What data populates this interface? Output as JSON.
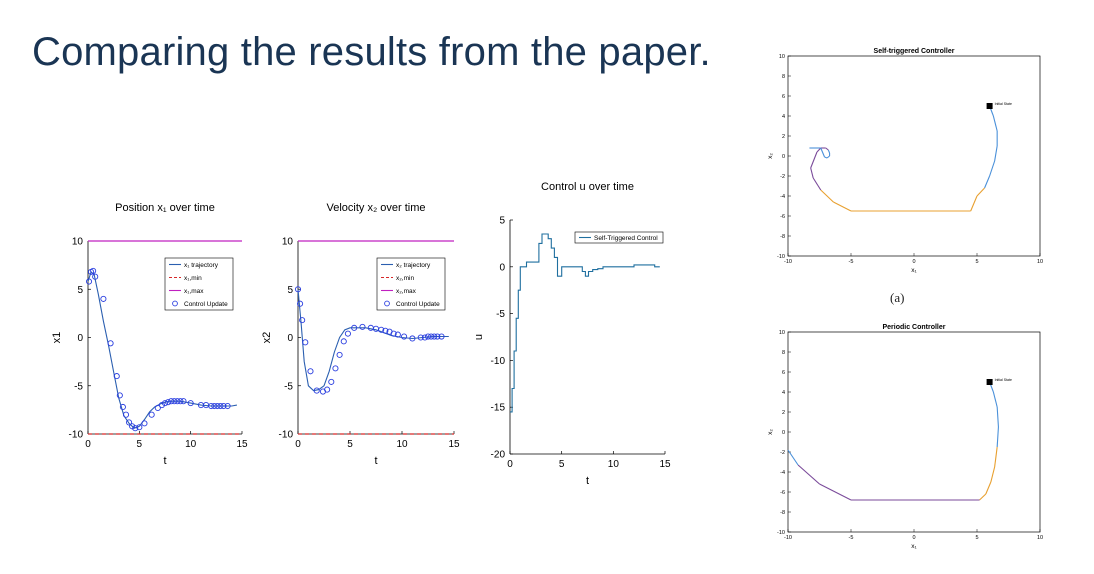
{
  "slide": {
    "title": "Comparing the results from the paper.",
    "subfigure_label": "(a)"
  },
  "colors": {
    "title": "#1a3554",
    "trajectory": "#2b5fb0",
    "markers": "#2b3fe0",
    "xmin": "#d62728",
    "xmax": "#c020c0",
    "control": "#1f6f9f",
    "phase_blue": "#4a90d9",
    "phase_orange": "#e8a030",
    "phase_purple": "#7a4a9a"
  },
  "chart_data": [
    {
      "id": "position",
      "type": "line",
      "title": "Position x₁ over time",
      "xlabel": "t",
      "ylabel": "x1",
      "xlim": [
        0,
        15
      ],
      "ylim": [
        -10,
        10
      ],
      "xticks": [
        0,
        5,
        10,
        15
      ],
      "yticks": [
        10,
        5,
        0,
        -5,
        -10
      ],
      "legend": [
        "x₁ trajectory",
        "x₁,min",
        "x₁,max",
        "Control Update"
      ],
      "legend_position": "top-right",
      "limits": {
        "min": -10,
        "max": 10
      },
      "series": [
        {
          "name": "x₁ trajectory",
          "x": [
            0,
            0.3,
            0.6,
            1,
            1.5,
            2,
            2.5,
            3,
            3.5,
            4,
            4.5,
            5,
            5.5,
            6,
            6.5,
            7,
            7.5,
            8,
            8.5,
            9,
            10,
            11,
            12,
            13,
            14,
            14.5
          ],
          "y": [
            5.8,
            6.8,
            6.5,
            4.5,
            1.7,
            -0.8,
            -3.6,
            -6.3,
            -8.1,
            -8.9,
            -9.4,
            -9.2,
            -8.5,
            -7.7,
            -7.2,
            -6.9,
            -6.7,
            -6.6,
            -6.6,
            -6.6,
            -6.8,
            -7.0,
            -7.1,
            -7.1,
            -7.1,
            -7.0
          ]
        },
        {
          "name": "Control Update",
          "x": [
            0.1,
            0.3,
            0.5,
            0.7,
            1.5,
            2.2,
            2.8,
            3.1,
            3.4,
            3.7,
            4,
            4.3,
            4.6,
            5,
            5.5,
            6.2,
            6.8,
            7.2,
            7.5,
            7.8,
            8.1,
            8.4,
            8.7,
            9,
            9.3,
            10,
            11,
            11.5,
            12,
            12.3,
            12.6,
            12.9,
            13.2,
            13.6
          ],
          "y": [
            5.8,
            6.8,
            6.9,
            6.3,
            4.0,
            -0.6,
            -4.0,
            -6.0,
            -7.2,
            -8.0,
            -8.8,
            -9.2,
            -9.4,
            -9.3,
            -8.9,
            -8.0,
            -7.3,
            -7.0,
            -6.8,
            -6.7,
            -6.6,
            -6.6,
            -6.6,
            -6.6,
            -6.6,
            -6.8,
            -7.0,
            -7.0,
            -7.1,
            -7.1,
            -7.1,
            -7.1,
            -7.1,
            -7.1
          ]
        }
      ]
    },
    {
      "id": "velocity",
      "type": "line",
      "title": "Velocity x₂ over time",
      "xlabel": "t",
      "ylabel": "x2",
      "xlim": [
        0,
        15
      ],
      "ylim": [
        -10,
        10
      ],
      "xticks": [
        0,
        5,
        10,
        15
      ],
      "yticks": [
        10,
        5,
        0,
        -5,
        -10
      ],
      "legend": [
        "x₂ trajectory",
        "x₂,min",
        "x₂,max",
        "Control Update"
      ],
      "legend_position": "top-right",
      "limits": {
        "min": -10,
        "max": 10
      },
      "series": [
        {
          "name": "x₂ trajectory",
          "x": [
            0,
            0.3,
            0.6,
            1,
            1.5,
            2,
            2.5,
            3,
            3.5,
            4,
            4.5,
            5,
            5.5,
            6,
            6.5,
            7,
            7.5,
            8,
            9,
            10,
            11,
            12,
            13,
            14,
            14.5
          ],
          "y": [
            5,
            1.5,
            -2.5,
            -5.0,
            -5.5,
            -5.4,
            -5.0,
            -3.5,
            -1.5,
            0.0,
            0.8,
            1.0,
            1.0,
            1.0,
            1.0,
            0.9,
            0.8,
            0.6,
            0.2,
            0.0,
            -0.1,
            0.0,
            0.1,
            0.1,
            0.1
          ]
        },
        {
          "name": "Control Update",
          "x": [
            0,
            0.2,
            0.4,
            0.7,
            1.2,
            1.8,
            2.4,
            2.8,
            3.2,
            3.6,
            4,
            4.4,
            4.8,
            5.4,
            6.2,
            7,
            7.5,
            8,
            8.4,
            8.8,
            9.2,
            9.6,
            10.2,
            11,
            11.8,
            12.2,
            12.5,
            12.8,
            13.1,
            13.4,
            13.8
          ],
          "y": [
            5,
            3.5,
            1.8,
            -0.5,
            -3.5,
            -5.5,
            -5.6,
            -5.4,
            -4.6,
            -3.2,
            -1.8,
            -0.4,
            0.4,
            1.0,
            1.1,
            1.0,
            0.9,
            0.8,
            0.7,
            0.6,
            0.4,
            0.3,
            0.1,
            -0.1,
            0.0,
            0.0,
            0.1,
            0.1,
            0.1,
            0.1,
            0.1
          ]
        }
      ]
    },
    {
      "id": "control",
      "type": "line",
      "title": "Control u over time",
      "xlabel": "t",
      "ylabel": "u",
      "xlim": [
        0,
        15
      ],
      "ylim": [
        -20,
        5
      ],
      "xticks": [
        0,
        5,
        10,
        15
      ],
      "yticks": [
        5,
        0,
        -5,
        -10,
        -15,
        -20
      ],
      "legend": [
        "Self-Triggered Control"
      ],
      "legend_position": "top-right",
      "series": [
        {
          "name": "Self-Triggered Control",
          "step": true,
          "x": [
            0,
            0.2,
            0.4,
            0.6,
            0.8,
            1.0,
            1.3,
            1.6,
            1.9,
            2.2,
            2.5,
            2.8,
            3.1,
            3.4,
            3.7,
            4.0,
            4.3,
            4.6,
            5.0,
            5.5,
            6.0,
            6.5,
            7.0,
            7.3,
            7.6,
            8.0,
            8.5,
            9.0,
            10.0,
            11.0,
            12.0,
            13.0,
            14.0,
            14.5
          ],
          "y": [
            -15.5,
            -13,
            -9,
            -5.5,
            -2.5,
            0,
            0,
            0.5,
            0.5,
            0.5,
            0.5,
            2.5,
            3.5,
            3.5,
            3.0,
            2.0,
            1.0,
            -1.0,
            0,
            0,
            0,
            0,
            -0.5,
            -1.0,
            -0.5,
            -0.3,
            -0.2,
            0,
            0,
            0,
            0.2,
            0.2,
            0,
            0
          ]
        }
      ]
    },
    {
      "id": "self-triggered-phase",
      "type": "line",
      "title": "Self-triggered Controller",
      "xlabel": "x₁",
      "ylabel": "x₂",
      "xlim": [
        -10,
        10
      ],
      "ylim": [
        -10,
        10
      ],
      "xticks": [
        -10,
        -5,
        0,
        5,
        10
      ],
      "yticks": [
        10,
        8,
        6,
        4,
        2,
        0,
        -2,
        -4,
        -6,
        -8,
        -10
      ],
      "annotation": "Initial State",
      "start": [
        6,
        5
      ],
      "series": [
        {
          "name": "",
          "x": [
            6,
            6.3,
            6.6,
            6.6,
            6.4,
            6.0,
            5.6,
            5.0,
            4.5,
            0,
            -5,
            -6.4,
            -7.4,
            -8.0,
            -8.2,
            -7.7,
            -7.4,
            -7.0,
            -6.8,
            -6.7,
            -6.7,
            -6.9,
            -7.1,
            -7.4,
            -8.3
          ],
          "y": [
            5,
            4,
            2.5,
            1.0,
            -0.5,
            -2.0,
            -3.2,
            -4.0,
            -5.5,
            -5.5,
            -5.5,
            -4.6,
            -3.4,
            -2.2,
            -1.2,
            0.4,
            0.8,
            0.8,
            0.6,
            0.3,
            0.0,
            -0.2,
            -0.1,
            0.8,
            0.8
          ]
        }
      ]
    },
    {
      "id": "periodic-phase",
      "type": "line",
      "title": "Periodic Controller",
      "xlabel": "x₁",
      "ylabel": "x₂",
      "xlim": [
        -10,
        10
      ],
      "ylim": [
        -10,
        10
      ],
      "xticks": [
        -10,
        -5,
        0,
        5,
        10
      ],
      "yticks": [
        10,
        8,
        6,
        4,
        2,
        0,
        -2,
        -4,
        -6,
        -8,
        -10
      ],
      "annotation": "Initial State",
      "start": [
        6,
        5
      ],
      "series": [
        {
          "name": "",
          "x": [
            6,
            6.3,
            6.6,
            6.7,
            6.6,
            6.4,
            6.1,
            5.7,
            5.2,
            0,
            -5,
            -7.5,
            -9.2,
            -10
          ],
          "y": [
            5,
            4,
            2.5,
            0.5,
            -1.5,
            -3.5,
            -5.0,
            -6.2,
            -6.8,
            -6.8,
            -6.8,
            -5.2,
            -3.3,
            -1.8
          ]
        }
      ]
    }
  ]
}
